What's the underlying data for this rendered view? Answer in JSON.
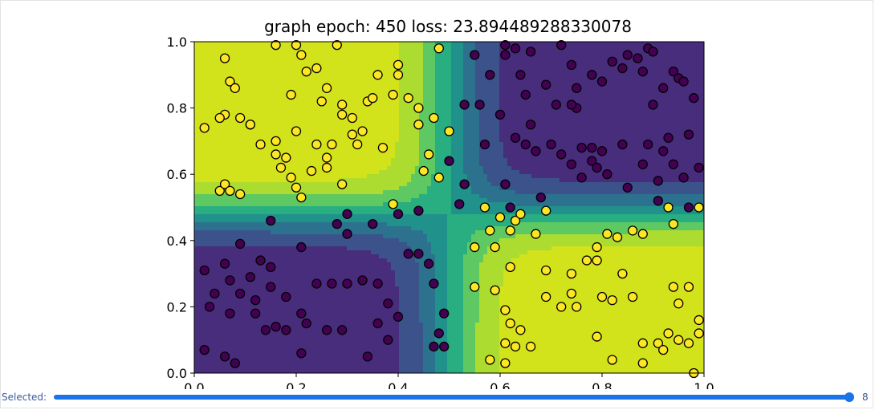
{
  "chart_data": {
    "type": "scatter",
    "title": "graph epoch: 450 loss: 23.894489288330078",
    "xlim": [
      0.0,
      1.0
    ],
    "ylim": [
      0.0,
      1.0
    ],
    "xticks": [
      "0.0",
      "0.2",
      "0.4",
      "0.6",
      "0.8",
      "1.0"
    ],
    "yticks": [
      "0.0",
      "0.2",
      "0.4",
      "0.6",
      "0.8",
      "1.0"
    ],
    "grid": false,
    "background": "filled contour of model prediction (viridis: purple/blue/teal/green/yellow) with decision boundary crossing near (0.5, 0.5)",
    "colors": {
      "class_0": "#440154",
      "class_1": "#fde725",
      "contour_levels": [
        "#472d7b",
        "#3b528b",
        "#2c728e",
        "#21918c",
        "#28ae80",
        "#5ec962",
        "#addc30",
        "#d2e21b"
      ]
    },
    "series": [
      {
        "class": 0,
        "points": [
          [
            0.02,
            0.31
          ],
          [
            0.04,
            0.24
          ],
          [
            0.06,
            0.33
          ],
          [
            0.07,
            0.28
          ],
          [
            0.09,
            0.24
          ],
          [
            0.11,
            0.29
          ],
          [
            0.12,
            0.22
          ],
          [
            0.13,
            0.34
          ],
          [
            0.15,
            0.32
          ],
          [
            0.03,
            0.2
          ],
          [
            0.07,
            0.18
          ],
          [
            0.12,
            0.18
          ],
          [
            0.15,
            0.26
          ],
          [
            0.18,
            0.23
          ],
          [
            0.21,
            0.18
          ],
          [
            0.24,
            0.27
          ],
          [
            0.27,
            0.27
          ],
          [
            0.3,
            0.27
          ],
          [
            0.33,
            0.28
          ],
          [
            0.36,
            0.27
          ],
          [
            0.38,
            0.21
          ],
          [
            0.4,
            0.17
          ],
          [
            0.14,
            0.13
          ],
          [
            0.16,
            0.14
          ],
          [
            0.18,
            0.13
          ],
          [
            0.22,
            0.15
          ],
          [
            0.26,
            0.13
          ],
          [
            0.29,
            0.13
          ],
          [
            0.36,
            0.15
          ],
          [
            0.38,
            0.1
          ],
          [
            0.02,
            0.07
          ],
          [
            0.06,
            0.05
          ],
          [
            0.08,
            0.03
          ],
          [
            0.21,
            0.06
          ],
          [
            0.34,
            0.05
          ],
          [
            0.42,
            0.36
          ],
          [
            0.44,
            0.36
          ],
          [
            0.46,
            0.33
          ],
          [
            0.47,
            0.27
          ],
          [
            0.49,
            0.18
          ],
          [
            0.48,
            0.12
          ],
          [
            0.49,
            0.08
          ],
          [
            0.47,
            0.08
          ],
          [
            0.15,
            0.46
          ],
          [
            0.09,
            0.39
          ],
          [
            0.21,
            0.38
          ],
          [
            0.28,
            0.45
          ],
          [
            0.3,
            0.48
          ],
          [
            0.3,
            0.42
          ],
          [
            0.35,
            0.45
          ],
          [
            0.4,
            0.48
          ],
          [
            0.44,
            0.49
          ],
          [
            0.5,
            0.64
          ],
          [
            0.52,
            0.51
          ],
          [
            0.53,
            0.57
          ],
          [
            0.53,
            0.81
          ],
          [
            0.56,
            0.81
          ],
          [
            0.57,
            0.69
          ],
          [
            0.55,
            0.96
          ],
          [
            0.58,
            0.9
          ],
          [
            0.6,
            0.78
          ],
          [
            0.61,
            0.96
          ],
          [
            0.61,
            0.99
          ],
          [
            0.63,
            0.98
          ],
          [
            0.64,
            0.9
          ],
          [
            0.65,
            0.84
          ],
          [
            0.66,
            0.97
          ],
          [
            0.69,
            0.87
          ],
          [
            0.72,
            0.99
          ],
          [
            0.74,
            0.93
          ],
          [
            0.75,
            0.86
          ],
          [
            0.78,
            0.9
          ],
          [
            0.8,
            0.88
          ],
          [
            0.82,
            0.94
          ],
          [
            0.84,
            0.92
          ],
          [
            0.85,
            0.96
          ],
          [
            0.87,
            0.95
          ],
          [
            0.88,
            0.91
          ],
          [
            0.89,
            0.98
          ],
          [
            0.9,
            0.97
          ],
          [
            0.92,
            0.86
          ],
          [
            0.94,
            0.91
          ],
          [
            0.95,
            0.89
          ],
          [
            0.96,
            0.88
          ],
          [
            0.98,
            0.83
          ],
          [
            0.9,
            0.81
          ],
          [
            0.75,
            0.8
          ],
          [
            0.74,
            0.81
          ],
          [
            0.71,
            0.81
          ],
          [
            0.66,
            0.75
          ],
          [
            0.63,
            0.71
          ],
          [
            0.65,
            0.69
          ],
          [
            0.67,
            0.67
          ],
          [
            0.7,
            0.69
          ],
          [
            0.72,
            0.66
          ],
          [
            0.74,
            0.63
          ],
          [
            0.76,
            0.68
          ],
          [
            0.78,
            0.68
          ],
          [
            0.8,
            0.67
          ],
          [
            0.84,
            0.69
          ],
          [
            0.78,
            0.64
          ],
          [
            0.79,
            0.62
          ],
          [
            0.81,
            0.6
          ],
          [
            0.89,
            0.69
          ],
          [
            0.93,
            0.71
          ],
          [
            0.92,
            0.67
          ],
          [
            0.97,
            0.72
          ],
          [
            0.94,
            0.63
          ],
          [
            0.96,
            0.59
          ],
          [
            0.99,
            0.62
          ],
          [
            0.76,
            0.59
          ],
          [
            0.85,
            0.56
          ],
          [
            0.88,
            0.63
          ],
          [
            0.91,
            0.58
          ],
          [
            0.91,
            0.52
          ],
          [
            0.97,
            0.5
          ],
          [
            0.68,
            0.53
          ],
          [
            0.62,
            0.5
          ],
          [
            0.61,
            0.57
          ]
        ]
      },
      {
        "class": 1,
        "points": [
          [
            0.06,
            0.95
          ],
          [
            0.07,
            0.88
          ],
          [
            0.08,
            0.86
          ],
          [
            0.09,
            0.77
          ],
          [
            0.11,
            0.75
          ],
          [
            0.13,
            0.69
          ],
          [
            0.16,
            0.7
          ],
          [
            0.16,
            0.66
          ],
          [
            0.17,
            0.62
          ],
          [
            0.18,
            0.65
          ],
          [
            0.19,
            0.59
          ],
          [
            0.2,
            0.73
          ],
          [
            0.19,
            0.84
          ],
          [
            0.2,
            0.56
          ],
          [
            0.21,
            0.53
          ],
          [
            0.23,
            0.61
          ],
          [
            0.24,
            0.69
          ],
          [
            0.24,
            0.92
          ],
          [
            0.25,
            0.82
          ],
          [
            0.26,
            0.86
          ],
          [
            0.26,
            0.62
          ],
          [
            0.26,
            0.65
          ],
          [
            0.27,
            0.69
          ],
          [
            0.29,
            0.81
          ],
          [
            0.29,
            0.78
          ],
          [
            0.31,
            0.72
          ],
          [
            0.31,
            0.77
          ],
          [
            0.32,
            0.69
          ],
          [
            0.33,
            0.73
          ],
          [
            0.34,
            0.82
          ],
          [
            0.35,
            0.83
          ],
          [
            0.36,
            0.9
          ],
          [
            0.37,
            0.68
          ],
          [
            0.39,
            0.84
          ],
          [
            0.4,
            0.93
          ],
          [
            0.4,
            0.9
          ],
          [
            0.42,
            0.83
          ],
          [
            0.44,
            0.8
          ],
          [
            0.44,
            0.75
          ],
          [
            0.47,
            0.77
          ],
          [
            0.46,
            0.66
          ],
          [
            0.45,
            0.61
          ],
          [
            0.48,
            0.59
          ],
          [
            0.06,
            0.78
          ],
          [
            0.05,
            0.77
          ],
          [
            0.02,
            0.74
          ],
          [
            0.11,
            0.75
          ],
          [
            0.05,
            0.55
          ],
          [
            0.06,
            0.57
          ],
          [
            0.07,
            0.55
          ],
          [
            0.09,
            0.54
          ],
          [
            0.16,
            0.99
          ],
          [
            0.2,
            0.99
          ],
          [
            0.21,
            0.96
          ],
          [
            0.22,
            0.91
          ],
          [
            0.28,
            0.99
          ],
          [
            0.39,
            0.51
          ],
          [
            0.29,
            0.57
          ],
          [
            0.48,
            0.98
          ],
          [
            0.57,
            0.5
          ],
          [
            0.58,
            0.43
          ],
          [
            0.59,
            0.38
          ],
          [
            0.6,
            0.47
          ],
          [
            0.62,
            0.43
          ],
          [
            0.63,
            0.46
          ],
          [
            0.64,
            0.48
          ],
          [
            0.67,
            0.42
          ],
          [
            0.69,
            0.49
          ],
          [
            0.62,
            0.32
          ],
          [
            0.59,
            0.25
          ],
          [
            0.61,
            0.19
          ],
          [
            0.62,
            0.15
          ],
          [
            0.64,
            0.13
          ],
          [
            0.61,
            0.09
          ],
          [
            0.63,
            0.08
          ],
          [
            0.66,
            0.08
          ],
          [
            0.58,
            0.04
          ],
          [
            0.61,
            0.03
          ],
          [
            0.69,
            0.31
          ],
          [
            0.69,
            0.23
          ],
          [
            0.72,
            0.2
          ],
          [
            0.74,
            0.24
          ],
          [
            0.74,
            0.3
          ],
          [
            0.75,
            0.2
          ],
          [
            0.77,
            0.34
          ],
          [
            0.79,
            0.34
          ],
          [
            0.8,
            0.23
          ],
          [
            0.82,
            0.22
          ],
          [
            0.86,
            0.23
          ],
          [
            0.83,
            0.41
          ],
          [
            0.84,
            0.3
          ],
          [
            0.86,
            0.43
          ],
          [
            0.88,
            0.42
          ],
          [
            0.79,
            0.38
          ],
          [
            0.81,
            0.42
          ],
          [
            0.93,
            0.5
          ],
          [
            0.94,
            0.26
          ],
          [
            0.95,
            0.21
          ],
          [
            0.94,
            0.45
          ],
          [
            0.97,
            0.26
          ],
          [
            0.99,
            0.16
          ],
          [
            0.99,
            0.12
          ],
          [
            0.93,
            0.12
          ],
          [
            0.95,
            0.1
          ],
          [
            0.97,
            0.09
          ],
          [
            0.91,
            0.09
          ],
          [
            0.92,
            0.07
          ],
          [
            0.88,
            0.03
          ],
          [
            0.88,
            0.09
          ],
          [
            0.82,
            0.04
          ],
          [
            0.79,
            0.11
          ],
          [
            0.99,
            0.5
          ],
          [
            0.98,
            0.0
          ],
          [
            0.55,
            0.26
          ],
          [
            0.55,
            0.38
          ],
          [
            0.5,
            0.73
          ]
        ]
      }
    ]
  },
  "slider": {
    "label": "Selected:",
    "value": "8",
    "fraction": 0.995
  }
}
